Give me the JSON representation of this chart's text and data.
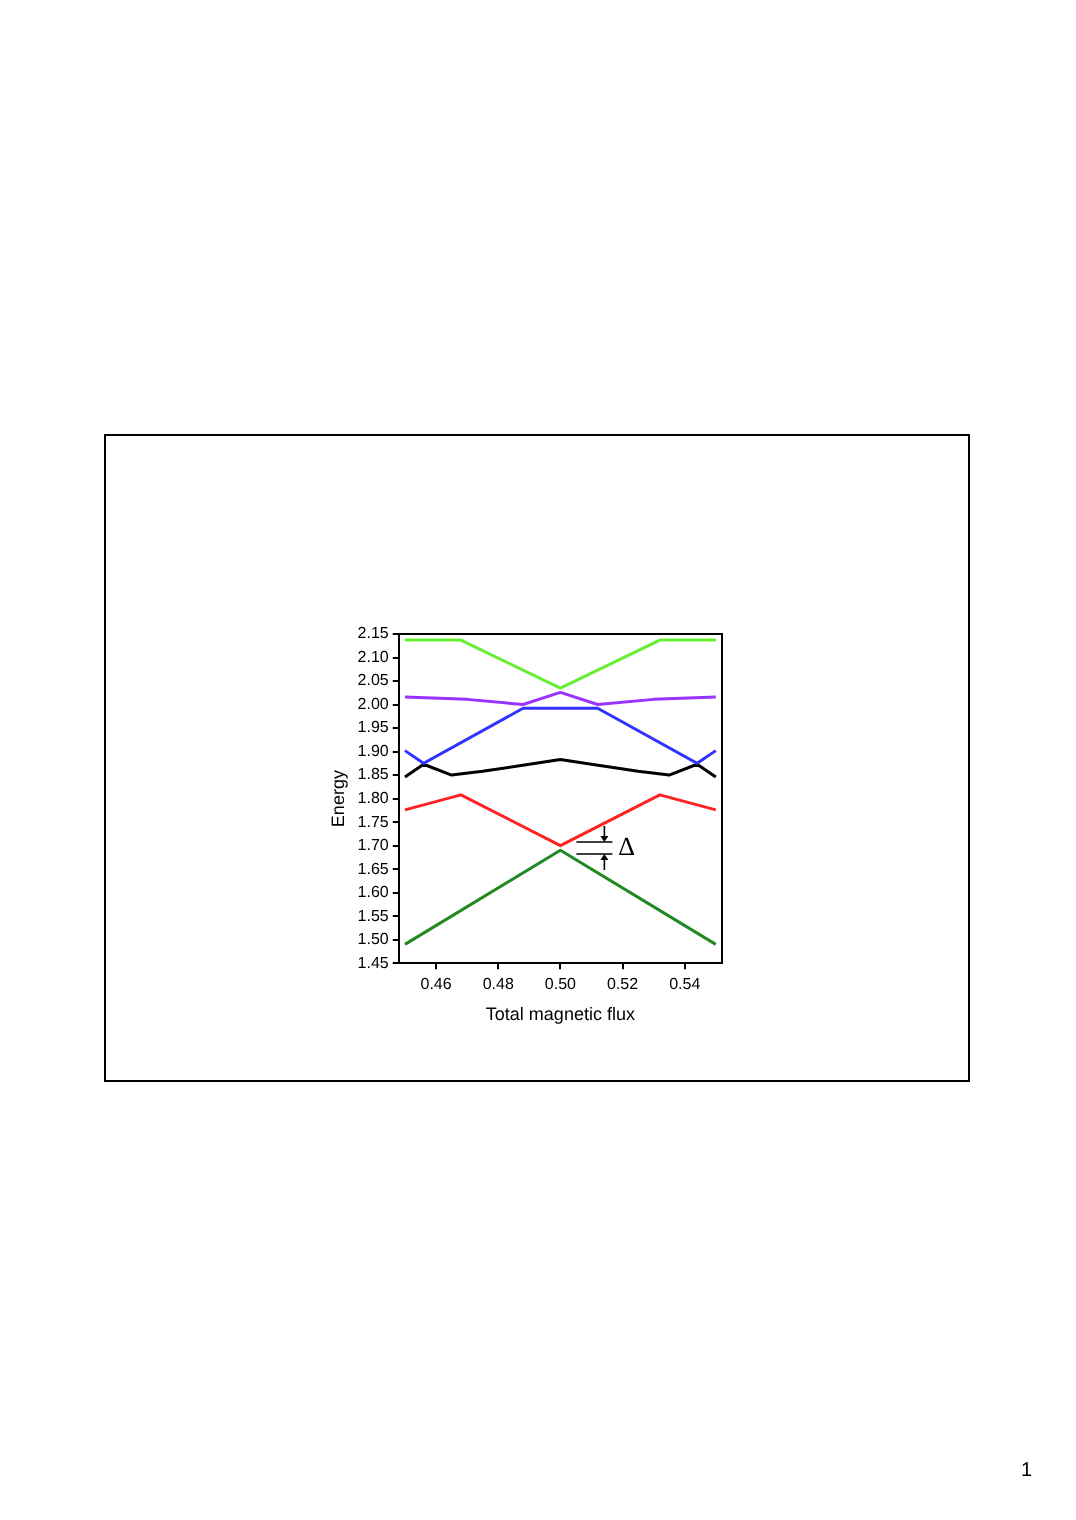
{
  "chart_data": {
    "type": "line",
    "xlabel": "Total magnetic flux",
    "ylabel": "Energy",
    "xlim": [
      0.448,
      0.552
    ],
    "ylim": [
      1.45,
      2.15
    ],
    "xticks": [
      {
        "value": 0.46,
        "label": "0.46"
      },
      {
        "value": 0.48,
        "label": "0.48"
      },
      {
        "value": 0.5,
        "label": "0.50"
      },
      {
        "value": 0.52,
        "label": "0.52"
      },
      {
        "value": 0.54,
        "label": "0.54"
      }
    ],
    "yticks": [
      {
        "value": 1.45,
        "label": "1.45"
      },
      {
        "value": 1.5,
        "label": "1.50"
      },
      {
        "value": 1.55,
        "label": "1.55"
      },
      {
        "value": 1.6,
        "label": "1.60"
      },
      {
        "value": 1.65,
        "label": "1.65"
      },
      {
        "value": 1.7,
        "label": "1.70"
      },
      {
        "value": 1.75,
        "label": "1.75"
      },
      {
        "value": 1.8,
        "label": "1.80"
      },
      {
        "value": 1.85,
        "label": "1.85"
      },
      {
        "value": 1.9,
        "label": "1.90"
      },
      {
        "value": 1.95,
        "label": "1.95"
      },
      {
        "value": 2.0,
        "label": "2.00"
      },
      {
        "value": 2.05,
        "label": "2.05"
      },
      {
        "value": 2.1,
        "label": "2.10"
      },
      {
        "value": 2.15,
        "label": "2.15"
      }
    ],
    "series": [
      {
        "color": "#66ee33",
        "x": [
          0.45,
          0.468,
          0.5,
          0.532,
          0.55
        ],
        "values": [
          2.137,
          2.137,
          2.035,
          2.137,
          2.137
        ]
      },
      {
        "color": "#9933ff",
        "x": [
          0.45,
          0.47,
          0.488,
          0.5,
          0.512,
          0.53,
          0.55
        ],
        "values": [
          2.016,
          2.011,
          2.0,
          2.026,
          2.0,
          2.011,
          2.016
        ]
      },
      {
        "color": "#3333ff",
        "x": [
          0.45,
          0.456,
          0.488,
          0.5,
          0.512,
          0.544,
          0.55
        ],
        "values": [
          1.902,
          1.875,
          1.992,
          1.992,
          1.992,
          1.875,
          1.902
        ]
      },
      {
        "color": "#000000",
        "x": [
          0.45,
          0.456,
          0.465,
          0.475,
          0.5,
          0.525,
          0.535,
          0.544,
          0.55
        ],
        "values": [
          1.846,
          1.873,
          1.85,
          1.858,
          1.883,
          1.858,
          1.85,
          1.873,
          1.846
        ]
      },
      {
        "color": "#ff2222",
        "x": [
          0.45,
          0.468,
          0.5,
          0.532,
          0.55
        ],
        "values": [
          1.776,
          1.808,
          1.7,
          1.808,
          1.776
        ]
      },
      {
        "color": "#228822",
        "x": [
          0.45,
          0.5,
          0.55
        ],
        "values": [
          1.49,
          1.69,
          1.49
        ]
      }
    ],
    "annotations": [
      "Δ",
      "1"
    ],
    "grid": false,
    "legend": false,
    "marker": "none",
    "line_style": "solid"
  }
}
